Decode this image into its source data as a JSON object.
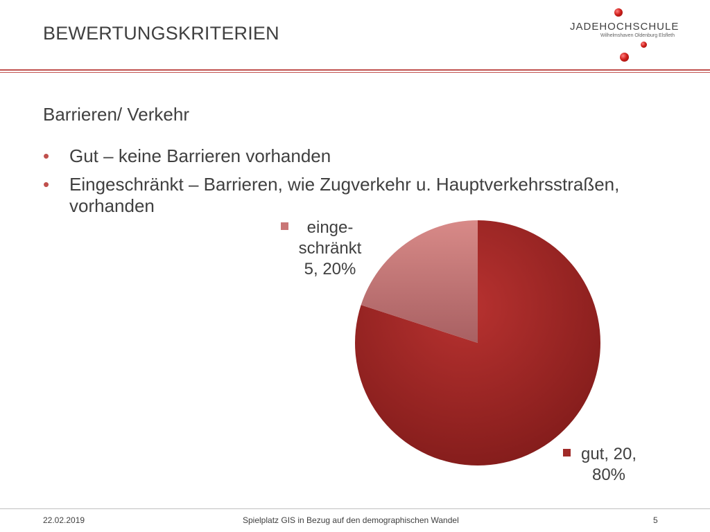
{
  "slide": {
    "title": "BEWERTUNGSKRITERIEN",
    "subtitle": "Barrieren/ Verkehr",
    "bullets": [
      "Gut – keine Barrieren vorhanden",
      "Eingeschränkt – Barrieren, wie Zugverkehr u. Hauptverkehrsstraßen, vorhanden"
    ],
    "bullet_glyph": "•"
  },
  "logo": {
    "word_jade": "JADE",
    "word_school": "HOCHSCHULE",
    "tagline": "Wilhelmshaven Oldenburg Elsfleth"
  },
  "footer": {
    "date": "22.02.2019",
    "center": "Spielplatz GIS in Bezug auf den demographischen Wandel",
    "page": "5"
  },
  "colors": {
    "accent": "#c0504d",
    "slice_gut": "#a02a28",
    "slice_eingeschraenkt": "#c97676"
  },
  "chart_data": {
    "type": "pie",
    "categories": [
      "gut",
      "eingeschränkt"
    ],
    "values": [
      20,
      5
    ],
    "percentages": [
      80,
      20
    ],
    "labels": [
      [
        "gut, 20,",
        "80%"
      ],
      [
        "einge-",
        "schränkt",
        "5, 20%"
      ]
    ],
    "title": ""
  }
}
